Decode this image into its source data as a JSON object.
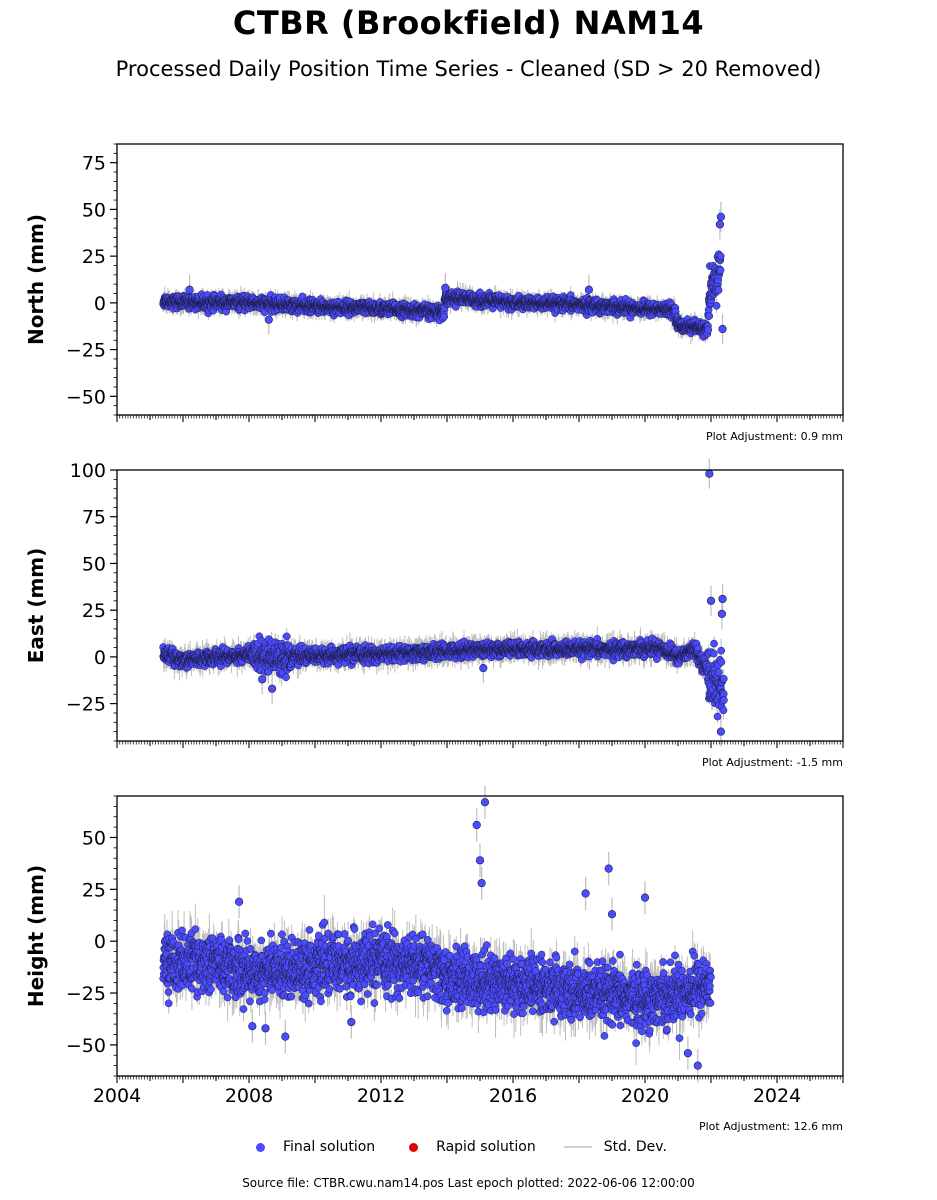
{
  "title": "CTBR (Brookfield) NAM14",
  "subtitle": "Processed Daily Position Time Series - Cleaned (SD > 20 Removed)",
  "legend": {
    "final": "Final solution",
    "rapid": "Rapid solution",
    "std": "Std. Dev."
  },
  "source_text": "Source file: CTBR.cwu.nam14.pos  Last epoch plotted: 2022-06-06 12:00:00",
  "colors": {
    "final": "#4c4cff",
    "rapid": "#e00000",
    "std": "#bdbdbd"
  },
  "chart_data": [
    {
      "type": "scatter",
      "name": "north",
      "ylabel": "North (mm)",
      "adjustment": "Plot Adjustment: 0.9 mm",
      "xlim": [
        2004.0,
        2026.0
      ],
      "ylim": [
        -60,
        85
      ],
      "yticks": [
        75,
        50,
        25,
        0,
        -25,
        -50
      ],
      "ytick_labels": [
        "75",
        "50",
        "25",
        "0",
        "−25",
        "−50"
      ],
      "series": [
        {
          "name": "Final solution",
          "segments": [
            {
              "x": 2005.4,
              "y": 1
            },
            {
              "x": 2006.5,
              "y": 0
            },
            {
              "x": 2008.0,
              "y": 0
            },
            {
              "x": 2010.0,
              "y": -2
            },
            {
              "x": 2012.0,
              "y": -3
            },
            {
              "x": 2013.9,
              "y": -5
            },
            {
              "x": 2013.95,
              "y": 3
            },
            {
              "x": 2016.0,
              "y": 0
            },
            {
              "x": 2018.0,
              "y": -1
            },
            {
              "x": 2020.0,
              "y": -3
            },
            {
              "x": 2020.9,
              "y": -4
            },
            {
              "x": 2021.0,
              "y": -12
            },
            {
              "x": 2021.9,
              "y": -14
            },
            {
              "x": 2022.0,
              "y": 5
            },
            {
              "x": 2022.3,
              "y": 20
            }
          ],
          "outliers": [
            {
              "x": 2006.2,
              "y": 7
            },
            {
              "x": 2008.6,
              "y": -9
            },
            {
              "x": 2013.95,
              "y": 8
            },
            {
              "x": 2018.3,
              "y": 7
            },
            {
              "x": 2022.3,
              "y": 46
            },
            {
              "x": 2022.27,
              "y": 42
            },
            {
              "x": 2022.35,
              "y": -14
            }
          ]
        }
      ]
    },
    {
      "type": "scatter",
      "name": "east",
      "ylabel": "East (mm)",
      "adjustment": "Plot Adjustment: -1.5 mm",
      "xlim": [
        2004.0,
        2026.0
      ],
      "ylim": [
        -45,
        100
      ],
      "yticks": [
        100,
        75,
        50,
        25,
        0,
        -25
      ],
      "ytick_labels": [
        "100",
        "75",
        "50",
        "25",
        "0",
        "−25"
      ],
      "series": [
        {
          "name": "Final solution",
          "segments": [
            {
              "x": 2005.4,
              "y": 2
            },
            {
              "x": 2006.0,
              "y": -2
            },
            {
              "x": 2007.0,
              "y": 0
            },
            {
              "x": 2008.0,
              "y": 1
            },
            {
              "x": 2009.0,
              "y": 0
            },
            {
              "x": 2011.0,
              "y": 1
            },
            {
              "x": 2013.0,
              "y": 2
            },
            {
              "x": 2015.0,
              "y": 4
            },
            {
              "x": 2017.0,
              "y": 4
            },
            {
              "x": 2019.0,
              "y": 4
            },
            {
              "x": 2020.5,
              "y": 5
            },
            {
              "x": 2021.0,
              "y": 0
            },
            {
              "x": 2021.5,
              "y": 4
            },
            {
              "x": 2022.0,
              "y": -10
            },
            {
              "x": 2022.4,
              "y": -20
            }
          ],
          "outliers": [
            {
              "x": 2008.4,
              "y": -12
            },
            {
              "x": 2008.7,
              "y": -17
            },
            {
              "x": 2015.1,
              "y": -6
            },
            {
              "x": 2021.95,
              "y": 98
            },
            {
              "x": 2022.0,
              "y": 30
            },
            {
              "x": 2022.35,
              "y": 31
            },
            {
              "x": 2022.33,
              "y": 23
            },
            {
              "x": 2022.3,
              "y": -40
            }
          ]
        }
      ]
    },
    {
      "type": "scatter",
      "name": "height",
      "ylabel": "Height (mm)",
      "adjustment": "Plot Adjustment: 12.6 mm",
      "xlim": [
        2004.0,
        2026.0
      ],
      "ylim": [
        -65,
        70
      ],
      "yticks": [
        50,
        25,
        0,
        -25,
        -50
      ],
      "ytick_labels": [
        "50",
        "25",
        "0",
        "−25",
        "−50"
      ],
      "xticks": [
        2004,
        2008,
        2012,
        2016,
        2020,
        2024
      ],
      "xtick_labels": [
        "2004",
        "2008",
        "2012",
        "2016",
        "2020",
        "2024"
      ],
      "series": [
        {
          "name": "Final solution",
          "segments": [
            {
              "x": 2005.4,
              "y": -10
            },
            {
              "x": 2007.0,
              "y": -10
            },
            {
              "x": 2008.0,
              "y": -15
            },
            {
              "x": 2010.0,
              "y": -12
            },
            {
              "x": 2012.0,
              "y": -10
            },
            {
              "x": 2013.5,
              "y": -12
            },
            {
              "x": 2014.0,
              "y": -18
            },
            {
              "x": 2016.0,
              "y": -20
            },
            {
              "x": 2018.0,
              "y": -25
            },
            {
              "x": 2020.0,
              "y": -28
            },
            {
              "x": 2021.0,
              "y": -25
            },
            {
              "x": 2022.0,
              "y": -20
            }
          ],
          "outliers": [
            {
              "x": 2014.9,
              "y": 56
            },
            {
              "x": 2015.15,
              "y": 67
            },
            {
              "x": 2015.0,
              "y": 39
            },
            {
              "x": 2015.05,
              "y": 28
            },
            {
              "x": 2007.7,
              "y": 19
            },
            {
              "x": 2018.2,
              "y": 23
            },
            {
              "x": 2018.9,
              "y": 35
            },
            {
              "x": 2020.0,
              "y": 21
            },
            {
              "x": 2019.0,
              "y": 13
            },
            {
              "x": 2021.6,
              "y": -60
            },
            {
              "x": 2021.3,
              "y": -54
            },
            {
              "x": 2008.1,
              "y": -41
            },
            {
              "x": 2008.5,
              "y": -42
            },
            {
              "x": 2009.1,
              "y": -46
            },
            {
              "x": 2011.1,
              "y": -39
            }
          ]
        }
      ]
    }
  ]
}
